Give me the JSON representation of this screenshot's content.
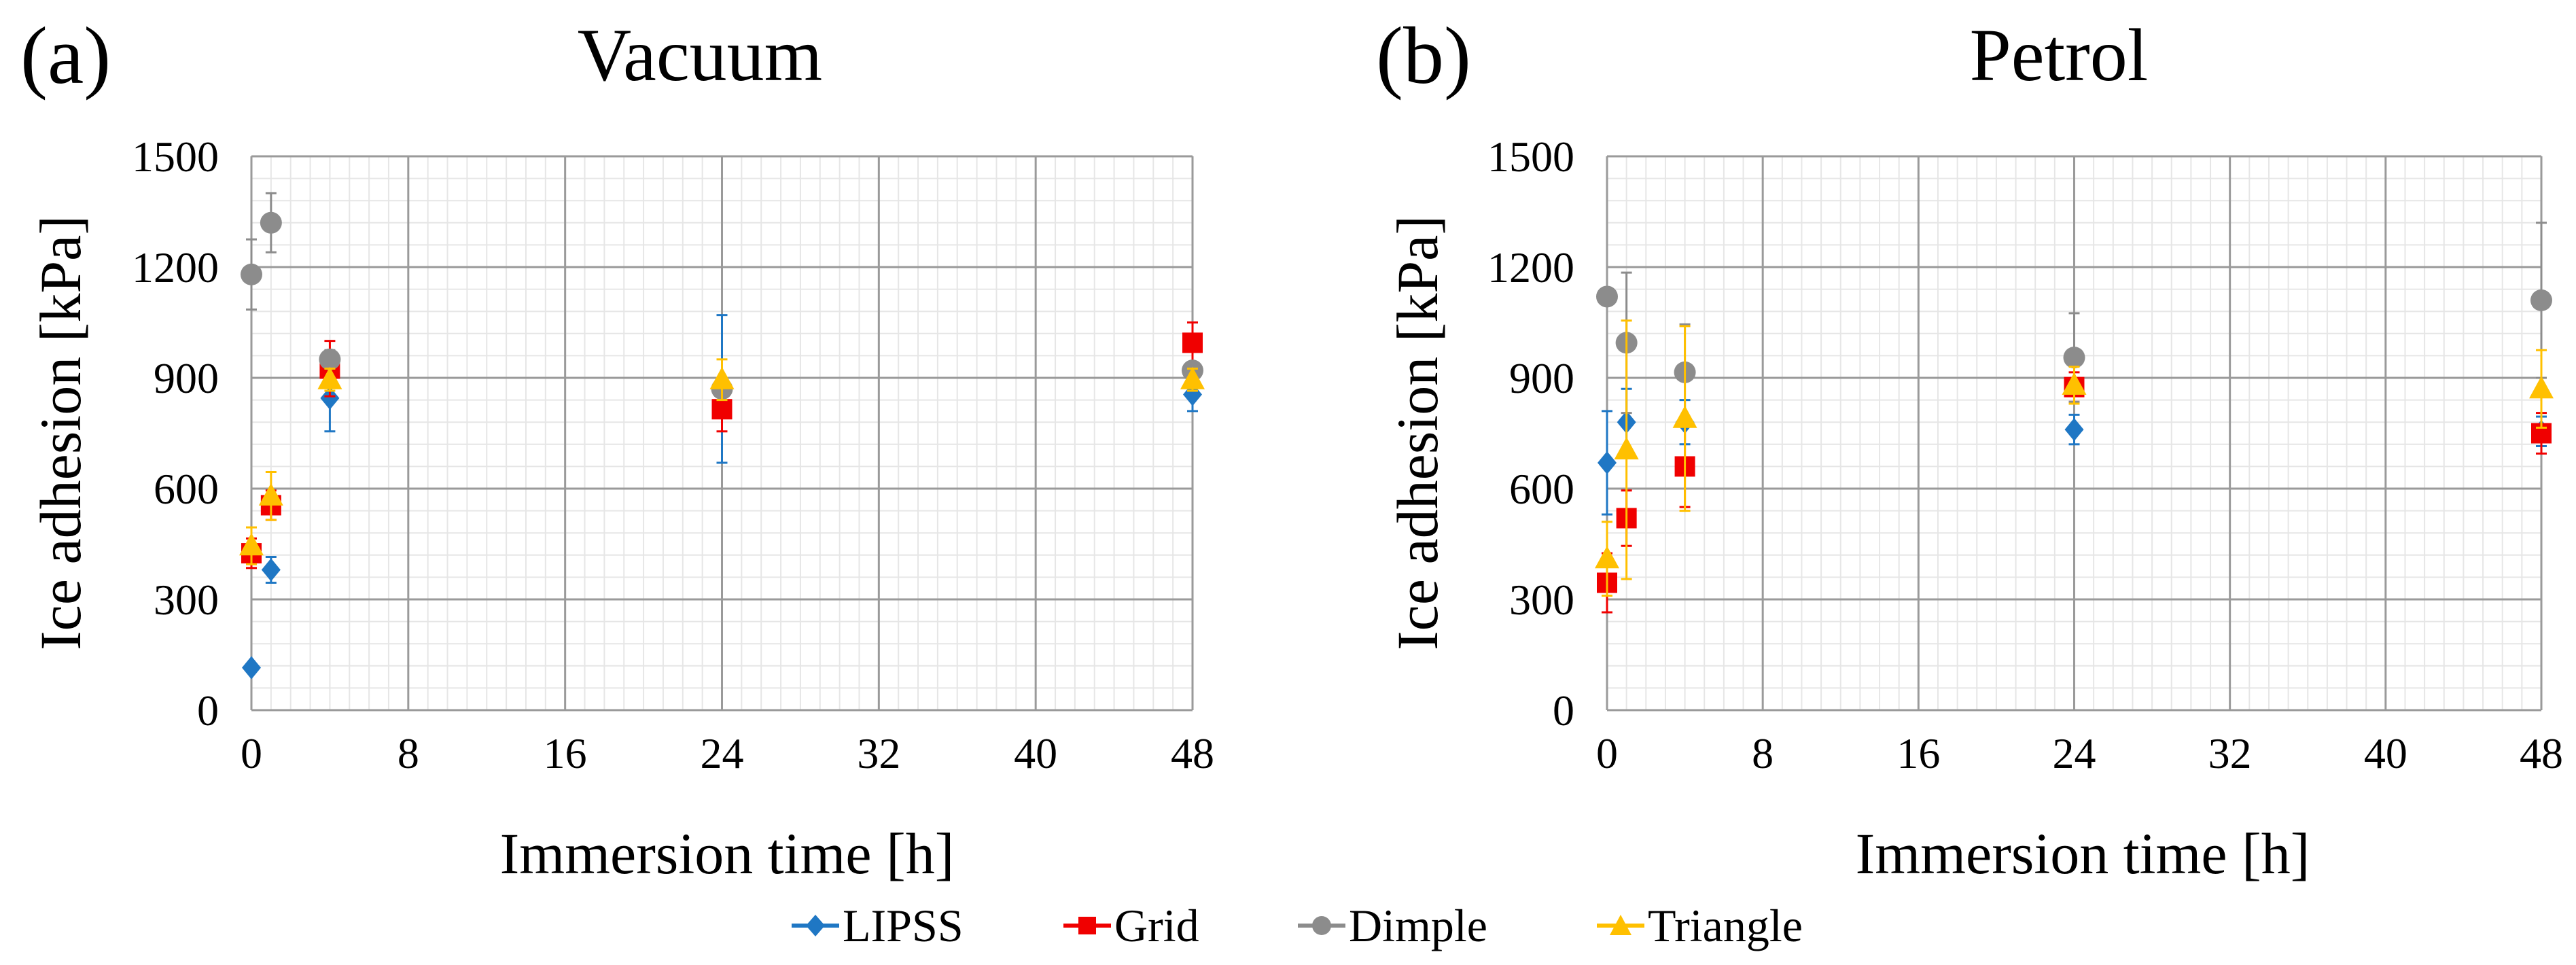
{
  "chart_data": [
    {
      "panel_label": "(a)",
      "type": "scatter",
      "title": "Vacuum",
      "xlabel": "Immersion time [h]",
      "ylabel": "Ice adhesion [kPa]",
      "xlim": [
        0,
        48
      ],
      "ylim": [
        0,
        1500
      ],
      "xticks": [
        0,
        8,
        16,
        24,
        32,
        40,
        48
      ],
      "yticks": [
        0,
        300,
        600,
        900,
        1200,
        1500
      ],
      "grid": true,
      "legend": "bottom-center",
      "x": [
        0,
        1,
        4,
        24,
        48
      ],
      "series": [
        {
          "name": "LIPSS",
          "marker": "diamond",
          "color": "#1F77C4",
          "values": [
            115,
            380,
            845,
            870,
            855
          ],
          "errors": [
            0,
            35,
            90,
            200,
            45
          ]
        },
        {
          "name": "Grid",
          "marker": "square",
          "color": "#F00000",
          "values": [
            425,
            555,
            925,
            815,
            995
          ],
          "errors": [
            40,
            40,
            75,
            60,
            55
          ]
        },
        {
          "name": "Dimple",
          "marker": "circle",
          "color": "#8C8C8C",
          "values": [
            1180,
            1320,
            950,
            870,
            920
          ],
          "errors": [
            95,
            80,
            25,
            20,
            20
          ]
        },
        {
          "name": "Triangle",
          "marker": "triangle",
          "color": "#FFC000",
          "values": [
            445,
            580,
            895,
            895,
            895
          ],
          "errors": [
            50,
            65,
            30,
            55,
            30
          ]
        }
      ]
    },
    {
      "panel_label": "(b)",
      "type": "scatter",
      "title": "Petrol",
      "xlabel": "Immersion time [h]",
      "ylabel": "Ice adhesion [kPa]",
      "xlim": [
        0,
        48
      ],
      "ylim": [
        0,
        1500
      ],
      "xticks": [
        0,
        8,
        16,
        24,
        32,
        40,
        48
      ],
      "yticks": [
        0,
        300,
        600,
        900,
        1200,
        1500
      ],
      "grid": true,
      "legend": "bottom-center",
      "x": [
        0,
        1,
        4,
        24,
        48
      ],
      "series": [
        {
          "name": "LIPSS",
          "marker": "diamond",
          "color": "#1F77C4",
          "values": [
            670,
            780,
            780,
            760,
            755
          ],
          "errors": [
            140,
            90,
            60,
            40,
            40
          ]
        },
        {
          "name": "Grid",
          "marker": "square",
          "color": "#F00000",
          "values": [
            345,
            520,
            660,
            875,
            750
          ],
          "errors": [
            80,
            75,
            110,
            40,
            55
          ]
        },
        {
          "name": "Dimple",
          "marker": "circle",
          "color": "#8C8C8C",
          "values": [
            1120,
            995,
            915,
            955,
            1110
          ],
          "errors": [
            0,
            190,
            130,
            120,
            210
          ]
        },
        {
          "name": "Triangle",
          "marker": "triangle",
          "color": "#FFC000",
          "values": [
            410,
            705,
            790,
            880,
            870
          ],
          "errors": [
            100,
            350,
            250,
            50,
            105
          ]
        }
      ]
    }
  ],
  "legend": {
    "items": [
      {
        "label": "LIPSS",
        "marker": "diamond",
        "color": "#1F77C4"
      },
      {
        "label": "Grid",
        "marker": "square",
        "color": "#F00000"
      },
      {
        "label": "Dimple",
        "marker": "circle",
        "color": "#8C8C8C"
      },
      {
        "label": "Triangle",
        "marker": "triangle",
        "color": "#FFC000"
      }
    ]
  }
}
